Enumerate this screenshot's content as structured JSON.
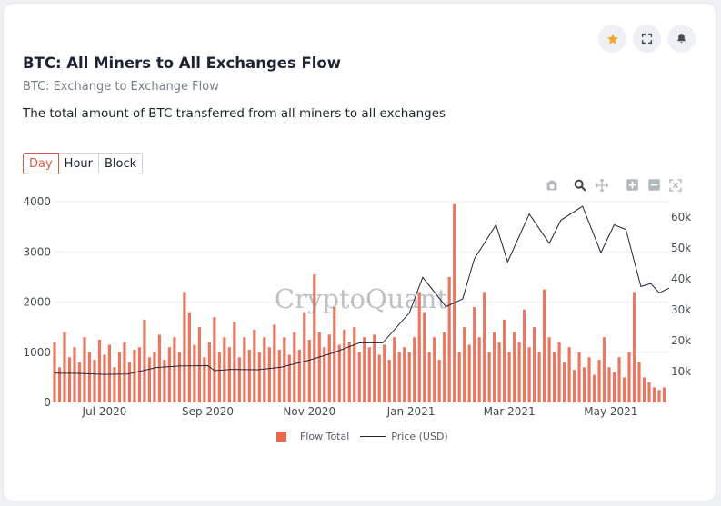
{
  "header": {
    "title": "BTC: All Miners to All Exchanges Flow",
    "subtitle": "BTC: Exchange to Exchange Flow",
    "description": "The total amount of BTC transferred from all miners to all exchanges"
  },
  "actions": [
    {
      "name": "star",
      "icon": "star-icon",
      "color": "#f5a623"
    },
    {
      "name": "fullscreen",
      "icon": "expand-icon"
    },
    {
      "name": "alert",
      "icon": "bell-icon"
    }
  ],
  "tabs": [
    {
      "label": "Day",
      "active": true
    },
    {
      "label": "Hour",
      "active": false
    },
    {
      "label": "Block",
      "active": false
    }
  ],
  "toolbar": [
    "camera-icon",
    "zoom-icon",
    "pan-icon",
    "zoom-in-icon",
    "zoom-out-icon",
    "autoscale-icon"
  ],
  "watermark": "CryptoQuant",
  "chart_data": {
    "type": "bar",
    "title": "",
    "x_range": [
      "2020-06-01",
      "2021-06-05"
    ],
    "x_ticks": [
      {
        "date": "2020-07-01",
        "label": "Jul 2020"
      },
      {
        "date": "2020-09-01",
        "label": "Sep 2020"
      },
      {
        "date": "2020-11-01",
        "label": "Nov 2020"
      },
      {
        "date": "2021-01-01",
        "label": "Jan 2021"
      },
      {
        "date": "2021-03-01",
        "label": "Mar 2021"
      },
      {
        "date": "2021-05-01",
        "label": "May 2021"
      }
    ],
    "y_left": {
      "range": [
        0,
        4000
      ],
      "ticks": [
        0,
        1000,
        2000,
        3000,
        4000
      ],
      "tick_labels": [
        "0",
        "1000",
        "2000",
        "3000",
        "4000"
      ]
    },
    "y_right": {
      "range": [
        0,
        65000
      ],
      "ticks": [
        10000,
        20000,
        30000,
        40000,
        50000,
        60000
      ],
      "tick_labels": [
        "10k",
        "20k",
        "30k",
        "40k",
        "50k",
        "60k"
      ]
    },
    "grid": true,
    "legend": "bottom-center",
    "series": [
      {
        "name": "Flow Total",
        "kind": "bar",
        "axis": "left",
        "color": "#e8694f",
        "points": [
          [
            "2020-06-01",
            1200
          ],
          [
            "2020-06-04",
            700
          ],
          [
            "2020-06-07",
            1400
          ],
          [
            "2020-06-10",
            900
          ],
          [
            "2020-06-13",
            1100
          ],
          [
            "2020-06-16",
            800
          ],
          [
            "2020-06-19",
            1300
          ],
          [
            "2020-06-22",
            1000
          ],
          [
            "2020-06-25",
            850
          ],
          [
            "2020-06-28",
            1250
          ],
          [
            "2020-07-01",
            950
          ],
          [
            "2020-07-04",
            1150
          ],
          [
            "2020-07-07",
            700
          ],
          [
            "2020-07-10",
            1000
          ],
          [
            "2020-07-13",
            1200
          ],
          [
            "2020-07-16",
            800
          ],
          [
            "2020-07-19",
            1050
          ],
          [
            "2020-07-22",
            1100
          ],
          [
            "2020-07-25",
            1650
          ],
          [
            "2020-07-28",
            900
          ],
          [
            "2020-07-31",
            1000
          ],
          [
            "2020-08-03",
            1350
          ],
          [
            "2020-08-06",
            850
          ],
          [
            "2020-08-09",
            1100
          ],
          [
            "2020-08-12",
            1300
          ],
          [
            "2020-08-15",
            1000
          ],
          [
            "2020-08-18",
            2200
          ],
          [
            "2020-08-21",
            1800
          ],
          [
            "2020-08-24",
            1150
          ],
          [
            "2020-08-27",
            1500
          ],
          [
            "2020-08-30",
            900
          ],
          [
            "2020-09-02",
            1200
          ],
          [
            "2020-09-05",
            1700
          ],
          [
            "2020-09-08",
            1000
          ],
          [
            "2020-09-11",
            1300
          ],
          [
            "2020-09-14",
            1100
          ],
          [
            "2020-09-17",
            1600
          ],
          [
            "2020-09-20",
            900
          ],
          [
            "2020-09-23",
            1300
          ],
          [
            "2020-09-26",
            1050
          ],
          [
            "2020-09-29",
            1450
          ],
          [
            "2020-10-02",
            1000
          ],
          [
            "2020-10-05",
            1300
          ],
          [
            "2020-10-08",
            1100
          ],
          [
            "2020-10-11",
            1550
          ],
          [
            "2020-10-14",
            1050
          ],
          [
            "2020-10-17",
            1300
          ],
          [
            "2020-10-20",
            950
          ],
          [
            "2020-10-23",
            1400
          ],
          [
            "2020-10-26",
            1050
          ],
          [
            "2020-10-29",
            1800
          ],
          [
            "2020-11-01",
            1250
          ],
          [
            "2020-11-04",
            2550
          ],
          [
            "2020-11-07",
            1400
          ],
          [
            "2020-11-10",
            1100
          ],
          [
            "2020-11-13",
            1350
          ],
          [
            "2020-11-16",
            1900
          ],
          [
            "2020-11-19",
            1150
          ],
          [
            "2020-11-22",
            1450
          ],
          [
            "2020-11-25",
            1200
          ],
          [
            "2020-11-28",
            1500
          ],
          [
            "2020-12-01",
            1000
          ],
          [
            "2020-12-04",
            1300
          ],
          [
            "2020-12-07",
            1100
          ],
          [
            "2020-12-10",
            1350
          ],
          [
            "2020-12-13",
            950
          ],
          [
            "2020-12-16",
            1150
          ],
          [
            "2020-12-19",
            850
          ],
          [
            "2020-12-22",
            1300
          ],
          [
            "2020-12-25",
            1000
          ],
          [
            "2020-12-28",
            1100
          ],
          [
            "2020-12-31",
            1000
          ],
          [
            "2021-01-03",
            1300
          ],
          [
            "2021-01-06",
            2200
          ],
          [
            "2021-01-09",
            1800
          ],
          [
            "2021-01-12",
            1000
          ],
          [
            "2021-01-15",
            1300
          ],
          [
            "2021-01-18",
            850
          ],
          [
            "2021-01-21",
            1400
          ],
          [
            "2021-01-24",
            2500
          ],
          [
            "2021-01-27",
            3950
          ],
          [
            "2021-01-30",
            1000
          ],
          [
            "2021-02-02",
            1500
          ],
          [
            "2021-02-05",
            1150
          ],
          [
            "2021-02-08",
            1900
          ],
          [
            "2021-02-11",
            1300
          ],
          [
            "2021-02-14",
            2200
          ],
          [
            "2021-02-17",
            1000
          ],
          [
            "2021-02-20",
            1400
          ],
          [
            "2021-02-23",
            1200
          ],
          [
            "2021-02-26",
            1650
          ],
          [
            "2021-03-01",
            1000
          ],
          [
            "2021-03-04",
            1400
          ],
          [
            "2021-03-07",
            1200
          ],
          [
            "2021-03-10",
            1850
          ],
          [
            "2021-03-13",
            1100
          ],
          [
            "2021-03-16",
            1500
          ],
          [
            "2021-03-19",
            1000
          ],
          [
            "2021-03-22",
            2250
          ],
          [
            "2021-03-25",
            1300
          ],
          [
            "2021-03-28",
            1000
          ],
          [
            "2021-03-31",
            1200
          ],
          [
            "2021-04-03",
            800
          ],
          [
            "2021-04-06",
            1100
          ],
          [
            "2021-04-09",
            650
          ],
          [
            "2021-04-12",
            1000
          ],
          [
            "2021-04-15",
            700
          ],
          [
            "2021-04-18",
            900
          ],
          [
            "2021-04-21",
            550
          ],
          [
            "2021-04-24",
            850
          ],
          [
            "2021-04-27",
            1300
          ],
          [
            "2021-04-30",
            700
          ],
          [
            "2021-05-03",
            600
          ],
          [
            "2021-05-06",
            900
          ],
          [
            "2021-05-09",
            500
          ],
          [
            "2021-05-12",
            1000
          ],
          [
            "2021-05-15",
            2200
          ],
          [
            "2021-05-18",
            800
          ],
          [
            "2021-05-21",
            500
          ],
          [
            "2021-05-24",
            400
          ],
          [
            "2021-05-27",
            300
          ],
          [
            "2021-05-30",
            250
          ],
          [
            "2021-06-02",
            300
          ]
        ]
      },
      {
        "name": "Price (USD)",
        "kind": "line",
        "axis": "right",
        "color": "#1d2433",
        "points": [
          [
            "2020-06-01",
            9500
          ],
          [
            "2020-06-15",
            9400
          ],
          [
            "2020-07-01",
            9100
          ],
          [
            "2020-07-15",
            9200
          ],
          [
            "2020-08-01",
            11300
          ],
          [
            "2020-08-15",
            11800
          ],
          [
            "2020-09-01",
            11900
          ],
          [
            "2020-09-05",
            10300
          ],
          [
            "2020-09-15",
            10700
          ],
          [
            "2020-10-01",
            10600
          ],
          [
            "2020-10-15",
            11400
          ],
          [
            "2020-11-01",
            13700
          ],
          [
            "2020-11-15",
            16000
          ],
          [
            "2020-12-01",
            19300
          ],
          [
            "2020-12-15",
            19300
          ],
          [
            "2020-12-31",
            29000
          ],
          [
            "2021-01-08",
            40500
          ],
          [
            "2021-01-22",
            31000
          ],
          [
            "2021-02-01",
            33500
          ],
          [
            "2021-02-08",
            46500
          ],
          [
            "2021-02-21",
            57500
          ],
          [
            "2021-02-28",
            45500
          ],
          [
            "2021-03-13",
            61000
          ],
          [
            "2021-03-25",
            51500
          ],
          [
            "2021-04-01",
            59000
          ],
          [
            "2021-04-14",
            63500
          ],
          [
            "2021-04-25",
            48500
          ],
          [
            "2021-05-03",
            57500
          ],
          [
            "2021-05-10",
            56000
          ],
          [
            "2021-05-19",
            37500
          ],
          [
            "2021-05-25",
            38500
          ],
          [
            "2021-05-30",
            35500
          ],
          [
            "2021-06-05",
            37000
          ]
        ]
      }
    ]
  }
}
